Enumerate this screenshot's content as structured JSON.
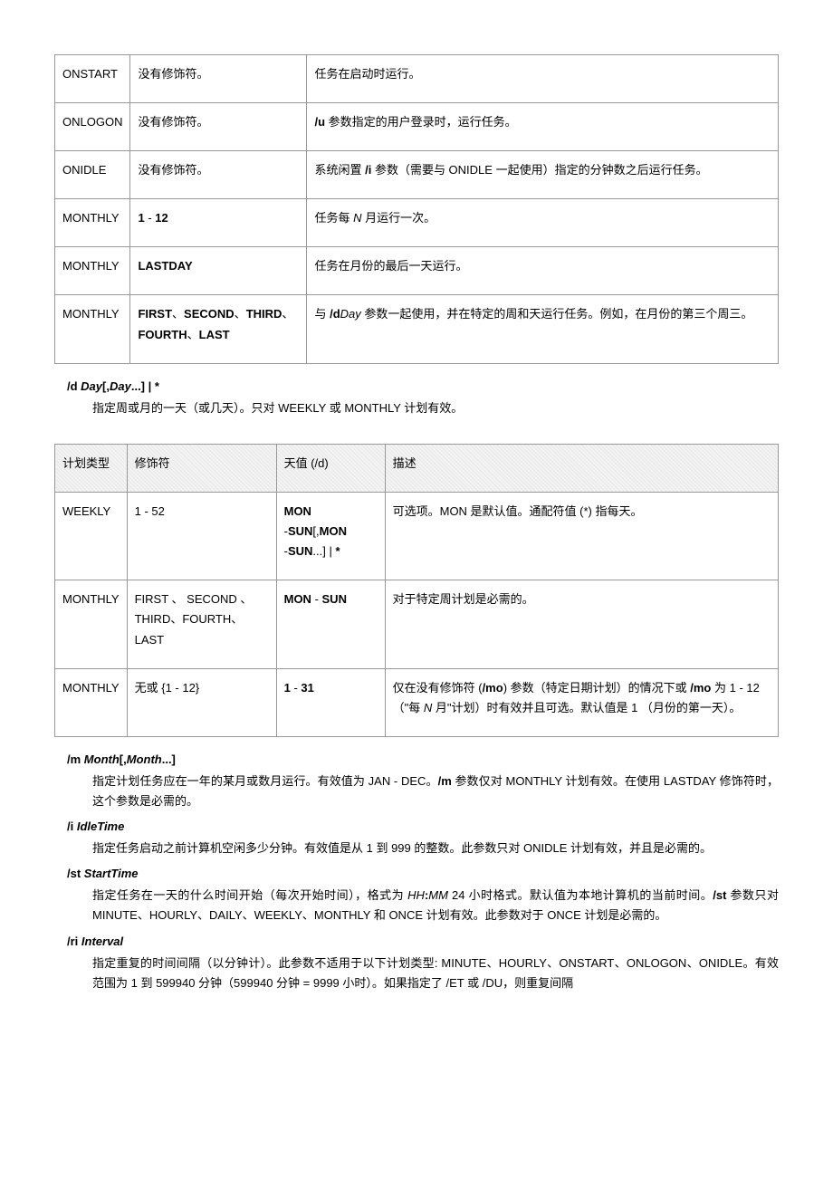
{
  "table1": {
    "rows": [
      {
        "c0": "ONSTART",
        "c1": "没有修饰符。",
        "c2": "任务在启动时运行。"
      },
      {
        "c0": "ONLOGON",
        "c1": "没有修饰符。",
        "c2": "<b>/u</b> 参数指定的用户登录时，运行任务。"
      },
      {
        "c0": "ONIDLE",
        "c1": "没有修饰符。",
        "c2": "系统闲置 <b>/i</b> 参数（需要与 ONIDLE 一起使用）指定的分钟数之后运行任务。"
      },
      {
        "c0": "MONTHLY",
        "c1": "<b>1</b> - <b>12</b>",
        "c2": "任务每 <i>N</i> 月运行一次。"
      },
      {
        "c0": "MONTHLY",
        "c1": "<b>LASTDAY</b>",
        "c2": "任务在月份的最后一天运行。"
      },
      {
        "c0": "MONTHLY",
        "c1": "<b>FIRST</b>、<b>SECOND</b>、<b>THIRD</b>、<b>FOURTH</b>、<b>LAST</b>",
        "c2": "与 <b>/d</b><i>Day</i> 参数一起使用，并在特定的周和天运行任务。例如，在月份的第三个周三。"
      }
    ]
  },
  "def1": {
    "term": "/d <span class=\"it\">Day</span>[,<span class=\"it\">Day</span>...] | *",
    "desc": "指定周或月的一天（或几天）。只对 WEEKLY 或 MONTHLY 计划有效。"
  },
  "table2": {
    "head": {
      "h0": "计划类型",
      "h1": "修饰符",
      "h2": "天值 (/d)",
      "h3": "描述"
    },
    "rows": [
      {
        "c0": "WEEKLY",
        "c1": "1 - 52",
        "c2": "<b>MON</b><br>-<b>SUN</b>[,<b>MON</b><br>-<b>SUN</b>...] | <b>*</b>",
        "c3": "可选项。MON 是默认值。通配符值 (*) 指每天。"
      },
      {
        "c0": "MONTHLY",
        "c1": "FIRST 、 SECOND 、THIRD、FOURTH、LAST",
        "c2": "<b>MON</b> - <b>SUN</b>",
        "c3": "对于特定周计划是必需的。"
      },
      {
        "c0": "MONTHLY",
        "c1": "无或 {1 - 12}",
        "c2": "<b>1</b> - <b>31</b>",
        "c3": "仅在没有修饰符 (<b>/mo</b>) 参数（特定日期计划）的情况下或 <b>/mo</b> 为 1 - 12（\"每 <i>N</i> 月\"计划）时有效并且可选。默认值是 1 （月份的第一天）。"
      }
    ]
  },
  "defs": [
    {
      "term": "/m <span class=\"it\">Month</span>[,<span class=\"it\">Month</span>...]",
      "desc": "指定计划任务应在一年的某月或数月运行。有效值为 JAN - DEC。<b>/m</b> 参数仅对 MONTHLY 计划有效。在使用 LASTDAY 修饰符时，这个参数是必需的。"
    },
    {
      "term": "/i <span class=\"it\">IdleTime</span>",
      "desc": "指定任务启动之前计算机空闲多少分钟。有效值是从 1 到 999 的整数。此参数只对 ONIDLE 计划有效，并且是必需的。"
    },
    {
      "term": "/st <span class=\"it\">StartTime</span>",
      "desc": "指定任务在一天的什么时间开始（每次开始时间），格式为 <i>HH</i><b>:</b><i>MM</i> 24 小时格式。默认值为本地计算机的当前时间。<b>/st</b> 参数只对 MINUTE、HOURLY、DAILY、WEEKLY、MONTHLY 和 ONCE 计划有效。此参数对于 ONCE 计划是必需的。"
    },
    {
      "term": "/ri <span class=\"it\">Interval</span>",
      "desc": "指定重复的时间间隔（以分钟计）。此参数不适用于以下计划类型: MINUTE、HOURLY、ONSTART、ONLOGON、ONIDLE。有效范围为 1 到 599940 分钟（599940 分钟 = 9999 小时）。如果指定了 /ET 或 /DU，则重复间隔"
    }
  ]
}
